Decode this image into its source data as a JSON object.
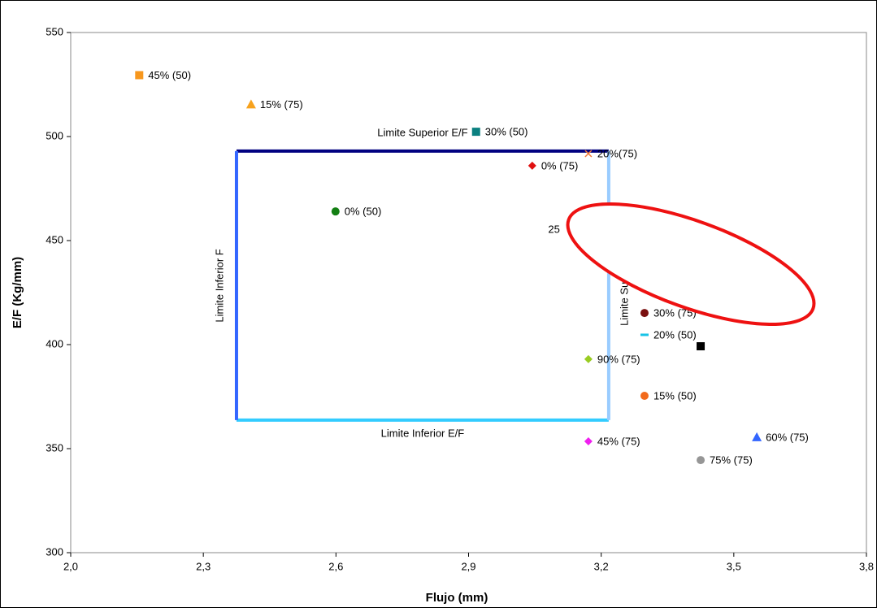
{
  "chart_data": {
    "type": "scatter",
    "x_label": "Flujo (mm)",
    "y_label": "E/F (Kg/mm)",
    "xlim": [
      2.0,
      3.8
    ],
    "xticks": [
      {
        "value": 2.0,
        "label": "2,0"
      },
      {
        "value": 2.3,
        "label": "2,3"
      },
      {
        "value": 2.6,
        "label": "2,6"
      },
      {
        "value": 2.9,
        "label": "2,9"
      },
      {
        "value": 3.2,
        "label": "3,2"
      },
      {
        "value": 3.5,
        "label": "3,5"
      },
      {
        "value": 3.8,
        "label": "3,8"
      }
    ],
    "ylim": [
      300,
      550
    ],
    "yticks": [
      300,
      350,
      400,
      450,
      500,
      550
    ],
    "grid": false,
    "series": [
      {
        "name": "45% (50)",
        "color": "#f7971d",
        "marker": "square",
        "x": [
          2.155
        ],
        "values": [
          529.5
        ]
      },
      {
        "name": "15% (75)",
        "color": "#f7a21d",
        "marker": "triangle",
        "x": [
          2.408
        ],
        "values": [
          515.5
        ]
      },
      {
        "name": "30% (50)",
        "color": "#0b8080",
        "marker": "square",
        "x": [
          2.917
        ],
        "values": [
          502.3
        ]
      },
      {
        "name": "20%(75)",
        "color": "#f07a3a",
        "marker": "x",
        "x": [
          3.171
        ],
        "values": [
          491.8
        ]
      },
      {
        "name": "0% (75)",
        "color": "#e01010",
        "marker": "diamond",
        "x": [
          3.044
        ],
        "values": [
          486
        ]
      },
      {
        "name": "0% (50)",
        "color": "#137f13",
        "marker": "circle",
        "x": [
          2.599
        ],
        "values": [
          464
        ]
      },
      {
        "name": "30% (75)",
        "color": "#7a1010",
        "marker": "circle",
        "x": [
          3.298
        ],
        "values": [
          415.2
        ]
      },
      {
        "name": "20% (50)",
        "color": "#17c3e6",
        "marker": "dash",
        "x": [
          3.298
        ],
        "values": [
          404.7
        ]
      },
      {
        "name": null,
        "color": "#000000",
        "marker": "square",
        "x": [
          3.425
        ],
        "values": [
          399.2
        ]
      },
      {
        "name": "90% (75)",
        "color": "#99cc22",
        "marker": "diamond",
        "x": [
          3.171
        ],
        "values": [
          393
        ]
      },
      {
        "name": "15% (50)",
        "color": "#f26a1b",
        "marker": "circle",
        "x": [
          3.298
        ],
        "values": [
          375.4
        ]
      },
      {
        "name": "45% (75)",
        "color": "#f020f0",
        "marker": "diamond",
        "x": [
          3.171
        ],
        "values": [
          353.5
        ]
      },
      {
        "name": "60% (75)",
        "color": "#3366ff",
        "marker": "triangle",
        "x": [
          3.552
        ],
        "values": [
          355.5
        ]
      },
      {
        "name": "75% (75)",
        "color": "#969696",
        "marker": "circle",
        "x": [
          3.425
        ],
        "values": [
          344.5
        ]
      }
    ],
    "limits": [
      {
        "name": "Limite Superior E/F",
        "color": "#000080",
        "x": [
          2.375,
          3.217
        ],
        "values": [
          493,
          493
        ]
      },
      {
        "name": "Limite Inferior E/F",
        "color": "#33ccff",
        "x": [
          2.375,
          3.217
        ],
        "values": [
          363.7,
          363.7
        ]
      },
      {
        "name": "Limite Inferior F",
        "color": "#3366ff",
        "x": [
          2.375,
          2.375
        ],
        "values": [
          363.7,
          493
        ]
      },
      {
        "name": "Limite Superior F",
        "color": "#99ccff",
        "x": [
          3.217,
          3.217
        ],
        "values": [
          363.7,
          493
        ]
      }
    ],
    "annotations": [
      {
        "text": "25",
        "x": 3.08,
        "y": 455
      }
    ]
  }
}
